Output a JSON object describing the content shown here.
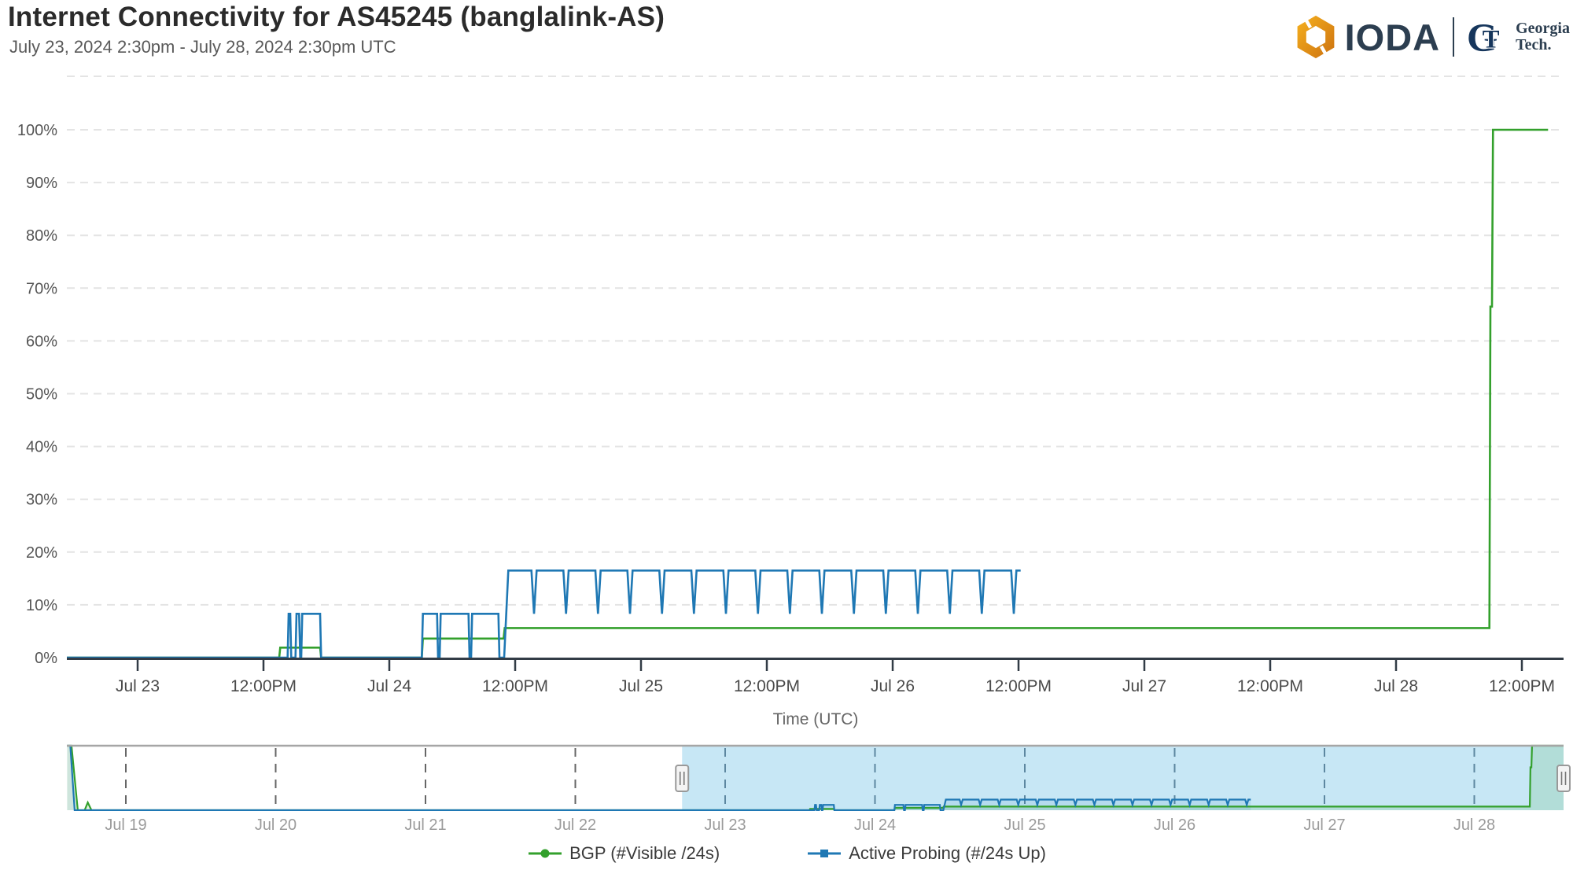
{
  "header": {
    "title": "Internet Connectivity for AS45245 (banglalink-AS)",
    "subtitle": "July 23, 2024 2:30pm - July 28, 2024 2:30pm UTC",
    "logo": {
      "ioda_text": "IODA",
      "gt_g": "G",
      "gt_t": "T",
      "gt_line1": "Georgia",
      "gt_line2": "Tech."
    }
  },
  "chart_data": {
    "type": "line",
    "title": "Internet Connectivity for AS45245 (banglalink-AS)",
    "xlabel": "Time (UTC)",
    "x_unit": "hours since Jul 23 2024 00:00 UTC",
    "ylim": [
      0,
      110
    ],
    "grid": "dashed",
    "yticks": [
      0,
      10,
      20,
      30,
      40,
      50,
      60,
      70,
      80,
      90,
      100
    ],
    "ytick_suffix": "%",
    "main_xticks": [
      [
        0,
        "Jul 23"
      ],
      [
        12,
        "12:00PM"
      ],
      [
        24,
        "Jul 24"
      ],
      [
        36,
        "12:00PM"
      ],
      [
        48,
        "Jul 25"
      ],
      [
        60,
        "12:00PM"
      ],
      [
        72,
        "Jul 26"
      ],
      [
        84,
        "12:00PM"
      ],
      [
        96,
        "Jul 27"
      ],
      [
        108,
        "12:00PM"
      ],
      [
        120,
        "Jul 28"
      ],
      [
        132,
        "12:00PM"
      ]
    ],
    "nav_xticks": [
      [
        -96,
        "Jul 19"
      ],
      [
        -72,
        "Jul 20"
      ],
      [
        -48,
        "Jul 21"
      ],
      [
        -24,
        "Jul 22"
      ],
      [
        0,
        "Jul 23"
      ],
      [
        24,
        "Jul 24"
      ],
      [
        48,
        "Jul 25"
      ],
      [
        72,
        "Jul 26"
      ],
      [
        96,
        "Jul 27"
      ],
      [
        120,
        "Jul 28"
      ]
    ],
    "navigator": {
      "selection_start_t": -6.9,
      "selection_end_t": 134.3
    },
    "colors": {
      "selection": "#c7e7f5",
      "grid": "#e4e4e4",
      "axis": "#323c46",
      "tick_label": "#4a4a4a",
      "ytick_label": "#555555",
      "nav_label": "#9b9b9b",
      "nav_grid_outside": "#666666",
      "nav_grid_inside": "#5d87a0",
      "nav_border": "#a6a6a6",
      "bgp_fill": "rgba(51,160,44,0.14)",
      "probing_fill": "rgba(31,120,180,0.10)",
      "ioda_orange_light": "#f5a91e",
      "ioda_orange_dark": "#cf7410",
      "navy": "#2c3e50"
    },
    "series": [
      {
        "name": "BGP (#Visible /24s)",
        "color": "#33a02c",
        "marker": "circle",
        "points": [
          [
            -105.4,
            100
          ],
          [
            -104.7,
            100
          ],
          [
            -103.7,
            0
          ],
          [
            -102.6,
            0
          ],
          [
            -102.1,
            12
          ],
          [
            -101.5,
            0
          ],
          [
            13.5,
            0
          ],
          [
            13.6,
            1.9
          ],
          [
            17.4,
            1.9
          ],
          [
            17.5,
            0
          ],
          [
            27.1,
            0
          ],
          [
            27.2,
            3.6
          ],
          [
            34.9,
            3.6
          ],
          [
            35.0,
            5.6
          ],
          [
            128.9,
            5.6
          ],
          [
            129.0,
            66.5
          ],
          [
            129.15,
            66.5
          ],
          [
            129.25,
            100
          ],
          [
            134.5,
            100
          ]
        ]
      },
      {
        "name": "Active Probing (#/24s Up)",
        "color": "#1f78b4",
        "marker": "square",
        "points": [
          [
            -105.4,
            100
          ],
          [
            -104.9,
            100
          ],
          [
            -104.2,
            0
          ],
          [
            14.3,
            0
          ],
          [
            14.4,
            8.3
          ],
          [
            14.55,
            8.3
          ],
          [
            14.65,
            0
          ],
          [
            15.05,
            0
          ],
          [
            15.15,
            8.3
          ],
          [
            15.4,
            8.3
          ],
          [
            15.5,
            0
          ],
          [
            15.6,
            0
          ],
          [
            15.7,
            8.3
          ],
          [
            17.4,
            8.3
          ],
          [
            17.5,
            0
          ],
          [
            27.1,
            0
          ],
          [
            27.2,
            8.3
          ],
          [
            28.55,
            8.3
          ],
          [
            28.65,
            0
          ],
          [
            28.8,
            0
          ],
          [
            28.9,
            8.3
          ],
          [
            31.55,
            8.3
          ],
          [
            31.65,
            0
          ],
          [
            31.8,
            0
          ],
          [
            31.9,
            8.3
          ],
          [
            34.4,
            8.3
          ],
          [
            34.5,
            0
          ],
          [
            34.95,
            0
          ],
          [
            35.35,
            16.5
          ],
          [
            37.55,
            16.5
          ],
          [
            37.8,
            8.3
          ],
          [
            38.05,
            16.5
          ],
          [
            40.6,
            16.5
          ],
          [
            40.85,
            8.3
          ],
          [
            41.1,
            16.5
          ],
          [
            43.65,
            16.5
          ],
          [
            43.9,
            8.3
          ],
          [
            44.15,
            16.5
          ],
          [
            46.7,
            16.5
          ],
          [
            46.95,
            8.3
          ],
          [
            47.2,
            16.5
          ],
          [
            49.75,
            16.5
          ],
          [
            50,
            8.3
          ],
          [
            50.25,
            16.5
          ],
          [
            52.8,
            16.5
          ],
          [
            53.05,
            8.3
          ],
          [
            53.3,
            16.5
          ],
          [
            55.85,
            16.5
          ],
          [
            56.1,
            8.3
          ],
          [
            56.35,
            16.5
          ],
          [
            58.9,
            16.5
          ],
          [
            59.15,
            8.3
          ],
          [
            59.4,
            16.5
          ],
          [
            61.95,
            16.5
          ],
          [
            62.2,
            8.3
          ],
          [
            62.45,
            16.5
          ],
          [
            65,
            16.5
          ],
          [
            65.25,
            8.3
          ],
          [
            65.5,
            16.5
          ],
          [
            68.05,
            16.5
          ],
          [
            68.3,
            8.3
          ],
          [
            68.55,
            16.5
          ],
          [
            71.1,
            16.5
          ],
          [
            71.35,
            8.3
          ],
          [
            71.6,
            16.5
          ],
          [
            74.15,
            16.5
          ],
          [
            74.4,
            8.3
          ],
          [
            74.65,
            16.5
          ],
          [
            77.2,
            16.5
          ],
          [
            77.45,
            8.3
          ],
          [
            77.7,
            16.5
          ],
          [
            80.25,
            16.5
          ],
          [
            80.5,
            8.3
          ],
          [
            80.75,
            16.5
          ],
          [
            83.3,
            16.5
          ],
          [
            83.55,
            8.3
          ],
          [
            83.8,
            16.5
          ],
          [
            84.2,
            16.5
          ]
        ]
      }
    ]
  },
  "legend": {
    "items": [
      {
        "label": "BGP (#Visible /24s)",
        "color": "#33a02c",
        "marker": "circle"
      },
      {
        "label": "Active Probing (#/24s Up)",
        "color": "#1f78b4",
        "marker": "square"
      }
    ]
  }
}
